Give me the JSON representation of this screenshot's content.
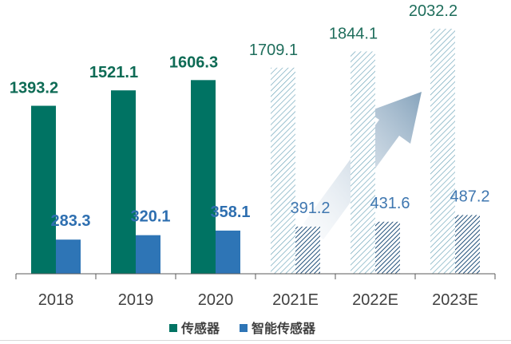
{
  "chart_data": {
    "type": "bar",
    "title": "",
    "xlabel": "",
    "ylabel": "",
    "ylim": [
      0,
      2032.2
    ],
    "grid": false,
    "legend_position": "bottom",
    "categories": [
      "2018",
      "2019",
      "2020",
      "2021E",
      "2022E",
      "2023E"
    ],
    "forecast_from_index": 3,
    "series": [
      {
        "name": "传感器",
        "color": "#007363",
        "forecast_pattern": "diagonal-hatch",
        "values": [
          1393.2,
          1521.1,
          1606.3,
          1709.1,
          1844.1,
          2032.2
        ],
        "labels": [
          "1393.2",
          "1521.1",
          "1606.3",
          "1709.1",
          "1844.1",
          "2032.2"
        ]
      },
      {
        "name": "智能传感器",
        "color": "#2e75b6",
        "forecast_pattern": "diagonal-hatch",
        "values": [
          283.3,
          320.1,
          358.1,
          391.2,
          431.6,
          487.2
        ],
        "labels": [
          "283.3",
          "320.1",
          "358.1",
          "391.2",
          "431.6",
          "487.2"
        ]
      }
    ],
    "annotation": "growth-trend-arrow"
  }
}
